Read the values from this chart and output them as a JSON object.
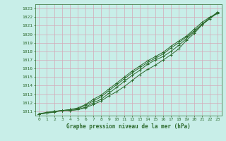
{
  "x": [
    0,
    1,
    2,
    3,
    4,
    5,
    6,
    7,
    8,
    9,
    10,
    11,
    12,
    13,
    14,
    15,
    16,
    17,
    18,
    19,
    20,
    21,
    22,
    23
  ],
  "line1": [
    1010.7,
    1010.8,
    1010.9,
    1011.1,
    1011.1,
    1011.2,
    1011.4,
    1011.8,
    1012.2,
    1012.8,
    1013.3,
    1013.9,
    1014.6,
    1015.3,
    1015.9,
    1016.4,
    1017.0,
    1017.6,
    1018.3,
    1019.3,
    1020.1,
    1021.1,
    1021.9,
    1022.6
  ],
  "line2": [
    1010.7,
    1010.8,
    1011.0,
    1011.1,
    1011.1,
    1011.2,
    1011.5,
    1012.0,
    1012.4,
    1013.1,
    1013.8,
    1014.5,
    1015.2,
    1015.8,
    1016.5,
    1017.0,
    1017.4,
    1018.0,
    1018.7,
    1019.5,
    1020.3,
    1021.1,
    1021.8,
    1022.5
  ],
  "line3": [
    1010.7,
    1010.8,
    1011.0,
    1011.1,
    1011.2,
    1011.3,
    1011.7,
    1012.2,
    1012.7,
    1013.4,
    1014.1,
    1014.8,
    1015.5,
    1016.1,
    1016.7,
    1017.2,
    1017.7,
    1018.4,
    1019.0,
    1019.7,
    1020.4,
    1021.2,
    1021.9,
    1022.5
  ],
  "line4": [
    1010.7,
    1010.9,
    1011.0,
    1011.1,
    1011.2,
    1011.4,
    1011.8,
    1012.4,
    1012.9,
    1013.6,
    1014.3,
    1015.0,
    1015.7,
    1016.3,
    1016.9,
    1017.4,
    1017.9,
    1018.6,
    1019.2,
    1019.8,
    1020.6,
    1021.4,
    1022.0,
    1022.4
  ],
  "line_color": "#2d6a2d",
  "bg_color": "#c8eee8",
  "grid_color": "#d4a8b8",
  "ylabel_vals": [
    1011,
    1012,
    1013,
    1014,
    1015,
    1016,
    1017,
    1018,
    1019,
    1020,
    1021,
    1022,
    1023
  ],
  "xlabel_label": "Graphe pression niveau de la mer (hPa)",
  "ylim": [
    1010.5,
    1023.5
  ],
  "xlim": [
    -0.5,
    23.5
  ],
  "figwidth": 3.2,
  "figheight": 2.0,
  "dpi": 100
}
